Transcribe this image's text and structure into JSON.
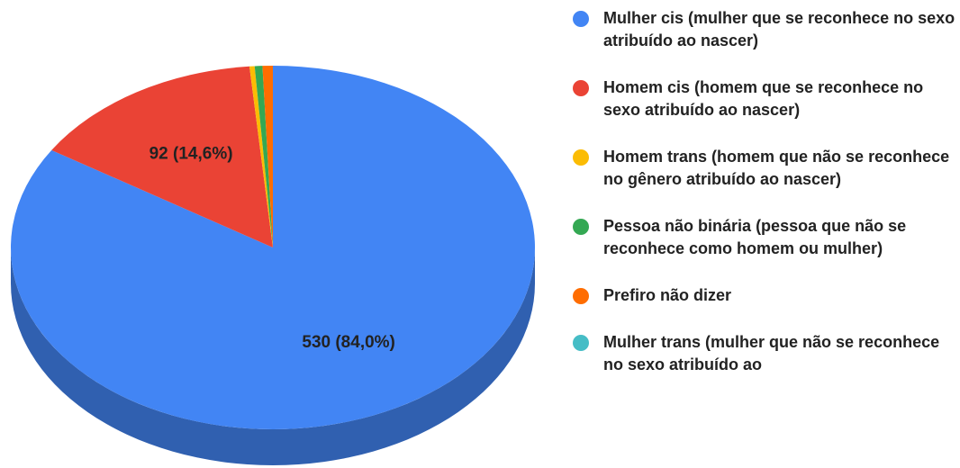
{
  "chart_data": {
    "type": "pie3d",
    "categories": [
      "Mulher cis (mulher que se reconhece no sexo atribuído ao nascer)",
      "Homem cis (homem que se reconhece no sexo atribuído ao nascer)",
      "Homem trans (homem que não se reconhece no gênero atribuído ao nascer)",
      "Pessoa não binária (pessoa que não se reconhece como homem ou mulher)",
      "Prefiro não dizer",
      "Mulher trans (mulher que não se reconhece no sexo atribuído ao"
    ],
    "values": [
      530,
      92,
      2,
      3,
      4,
      0
    ],
    "value_labels": [
      "530 (84,0%)",
      "92 (14,6%)",
      null,
      null,
      null,
      null
    ],
    "colors": [
      "#4285f4",
      "#ea4335",
      "#fbbc04",
      "#34a853",
      "#ff6d01",
      "#46bdc6"
    ],
    "legend": "right"
  }
}
